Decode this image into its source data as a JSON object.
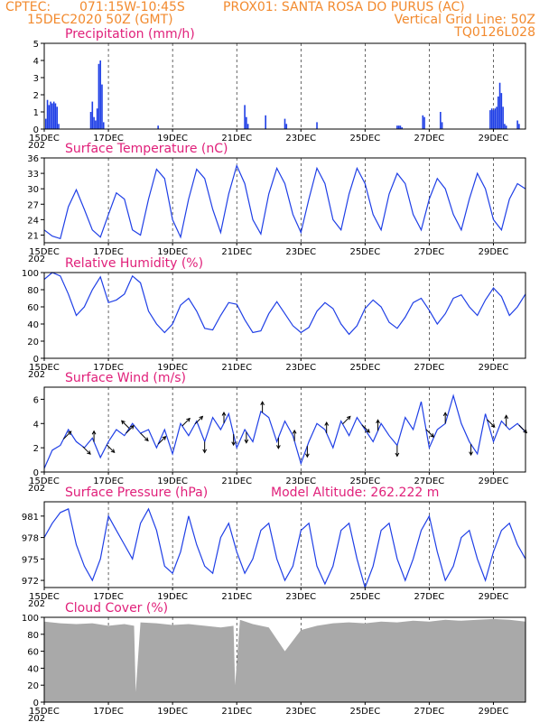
{
  "header": {
    "source": "CPTEC:",
    "coords": "071:15W-10:45S",
    "station": "PROX01: SANTA ROSA DO PURUS (AC)",
    "date": "15DEC2020 50Z (GMT)",
    "grid_note": "Vertical Grid Line: 50Z",
    "model_id": "TQ0126L028"
  },
  "colors": {
    "header": "#f28a2e",
    "title": "#e0207a",
    "series": "#1f3fe6",
    "cloud": "#a9a9a9"
  },
  "x_axis": {
    "days": [
      "15DEC",
      "17DEC",
      "19DEC",
      "21DEC",
      "23DEC",
      "25DEC",
      "27DEC",
      "29DEC"
    ],
    "day_offsets": [
      0,
      2,
      4,
      6,
      8,
      10,
      12,
      14
    ],
    "total_days": 15,
    "year_fragment": "202"
  },
  "chart_data": [
    {
      "id": "precip",
      "type": "bar",
      "title": "Precipitation (mm/h)",
      "ylim": [
        0,
        5
      ],
      "yticks": [
        0,
        1,
        2,
        3,
        4,
        5
      ],
      "x_days": [
        0.05,
        0.1,
        0.15,
        0.2,
        0.25,
        0.3,
        0.35,
        0.4,
        0.45,
        1.45,
        1.5,
        1.55,
        1.6,
        1.65,
        1.7,
        1.75,
        1.8,
        1.85,
        3.55,
        6.25,
        6.3,
        6.35,
        6.9,
        7.5,
        7.55,
        8.5,
        11.0,
        11.05,
        11.1,
        11.15,
        11.8,
        11.85,
        12.35,
        12.4,
        13.9,
        13.95,
        14.0,
        14.05,
        14.1,
        14.15,
        14.2,
        14.25,
        14.3,
        14.35,
        14.4,
        14.75,
        14.8
      ],
      "values": [
        0.6,
        1.7,
        1.4,
        1.6,
        1.5,
        1.6,
        1.5,
        1.3,
        0.3,
        1.0,
        1.6,
        0.7,
        0.5,
        1.2,
        3.8,
        4.0,
        2.6,
        0.4,
        0.2,
        1.4,
        0.7,
        0.3,
        0.8,
        0.6,
        0.3,
        0.4,
        0.2,
        0.2,
        0.2,
        0.1,
        0.8,
        0.7,
        1.0,
        0.4,
        1.1,
        1.2,
        1.1,
        1.2,
        1.3,
        1.9,
        2.7,
        2.1,
        1.3,
        0.3,
        0.2,
        0.5,
        0.3
      ]
    },
    {
      "id": "temp",
      "type": "line",
      "title": "Surface Temperature (nC)",
      "ylim": [
        19.5,
        36
      ],
      "yticks": [
        21,
        24,
        27,
        30,
        33,
        36
      ],
      "x_days": [
        0,
        0.25,
        0.5,
        0.75,
        1,
        1.25,
        1.5,
        1.75,
        2,
        2.25,
        2.5,
        2.75,
        3,
        3.25,
        3.5,
        3.75,
        4,
        4.25,
        4.5,
        4.75,
        5,
        5.25,
        5.5,
        5.75,
        6,
        6.25,
        6.5,
        6.75,
        7,
        7.25,
        7.5,
        7.75,
        8,
        8.25,
        8.5,
        8.75,
        9,
        9.25,
        9.5,
        9.75,
        10,
        10.25,
        10.5,
        10.75,
        11,
        11.25,
        11.5,
        11.75,
        12,
        12.25,
        12.5,
        12.75,
        13,
        13.25,
        13.5,
        13.75,
        14,
        14.25,
        14.5,
        14.75,
        15
      ],
      "values": [
        22,
        20.8,
        20.3,
        26.5,
        29.8,
        26,
        22,
        20.6,
        25,
        29.2,
        28,
        22,
        21,
        28,
        33.8,
        32,
        24,
        20.6,
        28,
        33.8,
        32,
        26,
        21.5,
        29,
        34.5,
        31,
        24,
        21.2,
        29,
        34,
        31,
        25,
        21.5,
        28,
        34,
        31,
        24,
        22,
        29,
        34,
        31,
        25,
        22,
        29,
        33,
        31,
        25,
        22,
        28,
        32,
        30,
        25,
        22,
        28,
        33,
        30,
        24,
        22,
        28,
        31,
        30
      ]
    },
    {
      "id": "rh",
      "type": "line",
      "title": "Relative Humidity (%)",
      "ylim": [
        0,
        100
      ],
      "yticks": [
        0,
        20,
        40,
        60,
        80,
        100
      ],
      "x_days": [
        0,
        0.25,
        0.5,
        0.75,
        1,
        1.25,
        1.5,
        1.75,
        2,
        2.25,
        2.5,
        2.75,
        3,
        3.25,
        3.5,
        3.75,
        4,
        4.25,
        4.5,
        4.75,
        5,
        5.25,
        5.5,
        5.75,
        6,
        6.25,
        6.5,
        6.75,
        7,
        7.25,
        7.5,
        7.75,
        8,
        8.25,
        8.5,
        8.75,
        9,
        9.25,
        9.5,
        9.75,
        10,
        10.25,
        10.5,
        10.75,
        11,
        11.25,
        11.5,
        11.75,
        12,
        12.25,
        12.5,
        12.75,
        13,
        13.25,
        13.5,
        13.75,
        14,
        14.25,
        14.5,
        14.75,
        15
      ],
      "values": [
        92,
        100,
        96,
        75,
        50,
        60,
        80,
        95,
        65,
        68,
        75,
        96,
        88,
        55,
        40,
        30,
        40,
        62,
        70,
        55,
        35,
        33,
        50,
        65,
        63,
        45,
        30,
        32,
        52,
        66,
        52,
        38,
        30,
        36,
        55,
        65,
        58,
        40,
        28,
        38,
        58,
        68,
        60,
        42,
        35,
        48,
        65,
        70,
        56,
        40,
        52,
        70,
        74,
        60,
        50,
        68,
        82,
        72,
        50,
        60,
        75
      ]
    },
    {
      "id": "wind",
      "type": "line",
      "title": "Surface Wind (m/s)",
      "ylim": [
        0,
        7
      ],
      "yticks": [
        0,
        2,
        4,
        6
      ],
      "x_days": [
        0,
        0.25,
        0.5,
        0.75,
        1,
        1.25,
        1.5,
        1.75,
        2,
        2.25,
        2.5,
        2.75,
        3,
        3.25,
        3.5,
        3.75,
        4,
        4.25,
        4.5,
        4.75,
        5,
        5.25,
        5.5,
        5.75,
        6,
        6.25,
        6.5,
        6.75,
        7,
        7.25,
        7.5,
        7.75,
        8,
        8.25,
        8.5,
        8.75,
        9,
        9.25,
        9.5,
        9.75,
        10,
        10.25,
        10.5,
        10.75,
        11,
        11.25,
        11.5,
        11.75,
        12,
        12.25,
        12.5,
        12.75,
        13,
        13.25,
        13.5,
        13.75,
        14,
        14.25,
        14.5,
        14.75,
        15
      ],
      "values": [
        0.3,
        1.8,
        2.2,
        3.5,
        2.5,
        2.0,
        2.8,
        1.2,
        2.5,
        3.5,
        3.0,
        4.0,
        3.2,
        3.5,
        2.0,
        3.5,
        1.5,
        4.0,
        3.0,
        4.2,
        2.5,
        4.5,
        3.5,
        4.8,
        2.0,
        3.5,
        2.5,
        5.0,
        4.5,
        2.5,
        4.2,
        3.0,
        0.7,
        2.5,
        4.0,
        3.5,
        2.0,
        4.2,
        3.0,
        4.5,
        3.5,
        2.5,
        4.0,
        3.0,
        2.2,
        4.5,
        3.5,
        5.8,
        2.0,
        3.5,
        4.0,
        6.3,
        4.0,
        2.5,
        1.5,
        4.8,
        2.5,
        4.2,
        3.5,
        4.0,
        3.3
      ],
      "arrows": [
        {
          "x": 0.6,
          "dir": "NE"
        },
        {
          "x": 1.2,
          "dir": "SE"
        },
        {
          "x": 1.55,
          "dir": "N"
        },
        {
          "x": 1.95,
          "dir": "SE"
        },
        {
          "x": 2.55,
          "dir": "NE"
        },
        {
          "x": 2.65,
          "dir": "NW"
        },
        {
          "x": 3.0,
          "dir": "SE"
        },
        {
          "x": 3.55,
          "dir": "NE"
        },
        {
          "x": 4.3,
          "dir": "NE"
        },
        {
          "x": 4.7,
          "dir": "NE"
        },
        {
          "x": 5.0,
          "dir": "S"
        },
        {
          "x": 5.6,
          "dir": "N"
        },
        {
          "x": 5.9,
          "dir": "S"
        },
        {
          "x": 6.3,
          "dir": "S"
        },
        {
          "x": 6.8,
          "dir": "N"
        },
        {
          "x": 7.3,
          "dir": "S"
        },
        {
          "x": 7.8,
          "dir": "N"
        },
        {
          "x": 8.2,
          "dir": "S"
        },
        {
          "x": 8.8,
          "dir": "N"
        },
        {
          "x": 9.3,
          "dir": "NE"
        },
        {
          "x": 9.9,
          "dir": "SE"
        },
        {
          "x": 10.4,
          "dir": "N"
        },
        {
          "x": 11.0,
          "dir": "S"
        },
        {
          "x": 11.9,
          "dir": "SE"
        },
        {
          "x": 12.5,
          "dir": "N"
        },
        {
          "x": 13.3,
          "dir": "S"
        },
        {
          "x": 13.8,
          "dir": "SE"
        },
        {
          "x": 14.4,
          "dir": "N"
        },
        {
          "x": 14.8,
          "dir": "SE"
        }
      ]
    },
    {
      "id": "pres",
      "type": "line",
      "title": "Surface Pressure (hPa)",
      "annotation": "Model Altitude: 262.222 m",
      "ylim": [
        971,
        983
      ],
      "yticks": [
        972,
        975,
        978,
        981
      ],
      "x_days": [
        0,
        0.25,
        0.5,
        0.75,
        1,
        1.25,
        1.5,
        1.75,
        2,
        2.25,
        2.5,
        2.75,
        3,
        3.25,
        3.5,
        3.75,
        4,
        4.25,
        4.5,
        4.75,
        5,
        5.25,
        5.5,
        5.75,
        6,
        6.25,
        6.5,
        6.75,
        7,
        7.25,
        7.5,
        7.75,
        8,
        8.25,
        8.5,
        8.75,
        9,
        9.25,
        9.5,
        9.75,
        10,
        10.25,
        10.5,
        10.75,
        11,
        11.25,
        11.5,
        11.75,
        12,
        12.25,
        12.5,
        12.75,
        13,
        13.25,
        13.5,
        13.75,
        14,
        14.25,
        14.5,
        14.75,
        15
      ],
      "values": [
        978,
        980,
        981.5,
        982,
        977,
        974,
        972,
        975,
        981,
        979,
        977,
        975,
        980,
        982,
        979,
        974,
        973,
        976,
        981,
        977,
        974,
        973,
        978,
        980,
        976,
        973,
        975,
        979,
        980,
        975,
        972,
        974,
        979,
        980,
        974,
        971.5,
        974,
        979,
        980,
        975,
        971,
        974,
        979,
        980,
        975,
        972,
        975,
        979,
        981,
        976,
        972,
        974,
        978,
        979,
        975,
        972,
        976,
        979,
        980,
        977,
        975
      ]
    },
    {
      "id": "cloud",
      "type": "area",
      "title": "Cloud Cover (%)",
      "ylim": [
        0,
        100
      ],
      "yticks": [
        0,
        20,
        40,
        60,
        80,
        100
      ],
      "x_days": [
        0,
        0.5,
        1,
        1.5,
        2,
        2.5,
        2.8,
        2.85,
        3,
        3.5,
        4,
        4.5,
        5,
        5.5,
        5.9,
        5.95,
        6.1,
        6.5,
        7,
        7.5,
        8,
        8.5,
        9,
        9.5,
        10,
        10.5,
        11,
        11.5,
        12,
        12.5,
        13,
        13.5,
        14,
        14.5,
        15
      ],
      "values": [
        95,
        93,
        92,
        93,
        90,
        92,
        90,
        12,
        94,
        93,
        91,
        92,
        90,
        88,
        90,
        20,
        97,
        92,
        88,
        60,
        85,
        90,
        93,
        94,
        93,
        95,
        94,
        96,
        95,
        97,
        96,
        97,
        98,
        97,
        95
      ]
    }
  ]
}
